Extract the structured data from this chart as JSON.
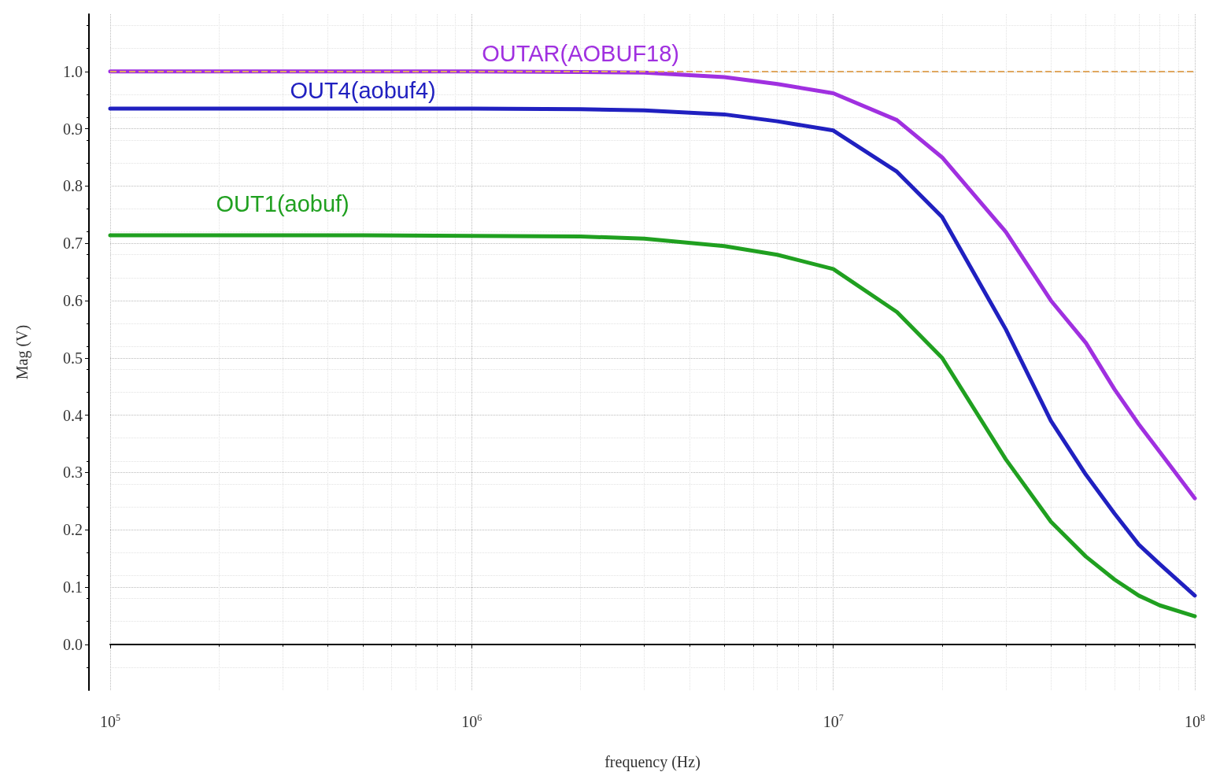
{
  "chart_data": {
    "type": "line",
    "xlabel": "frequency (Hz)",
    "ylabel": "Mag (V)",
    "log": "x",
    "x": [
      100000,
      300000,
      500000,
      1000000,
      2000000,
      3000000,
      5000000,
      7000000,
      10000000,
      15000000,
      20000000,
      30000000,
      40000000,
      50000000,
      60000000,
      70000000,
      80000000,
      100000000
    ],
    "series": [
      {
        "name": "OUTAR(AOBUF18)",
        "color": "#a030e0",
        "values": [
          1.0,
          1.0,
          1.0,
          1.0,
          0.999,
          0.998,
          0.99,
          0.978,
          0.962,
          0.915,
          0.85,
          0.72,
          0.6,
          0.526,
          0.445,
          0.384,
          0.336,
          0.255
        ]
      },
      {
        "name": "OUT4(aobuf4)",
        "color": "#2020c0",
        "values": [
          0.935,
          0.935,
          0.935,
          0.935,
          0.934,
          0.932,
          0.925,
          0.913,
          0.897,
          0.825,
          0.746,
          0.55,
          0.39,
          0.296,
          0.228,
          0.174,
          0.14,
          0.085
        ]
      },
      {
        "name": "OUT1(aobuf)",
        "color": "#20a020",
        "values": [
          0.714,
          0.714,
          0.714,
          0.713,
          0.712,
          0.708,
          0.695,
          0.68,
          0.655,
          0.58,
          0.5,
          0.323,
          0.214,
          0.153,
          0.113,
          0.085,
          0.068,
          0.049
        ]
      }
    ],
    "xlim": [
      100000,
      100000000
    ],
    "xticks": [
      {
        "value": 100000,
        "label": "10$^{5}$"
      },
      {
        "value": 1000000,
        "label": "10$^{6}$"
      },
      {
        "value": 10000000,
        "label": "10$^{7}$"
      },
      {
        "value": 100000000,
        "label": "10$^{8}$"
      }
    ],
    "ylim": [
      -0.08,
      1.1
    ],
    "yticks": [
      {
        "value": 0,
        "label": "0.0"
      },
      0.1,
      0.2,
      0.3,
      0.4,
      0.5,
      0.6,
      0.7,
      0.8,
      0.9,
      {
        "value": 1,
        "label": "1.0"
      }
    ],
    "ref_lines": [
      {
        "axis": "y",
        "value": 1.0,
        "color": "#e0a860",
        "line_style": "dashed"
      }
    ],
    "grid": true,
    "legend": false,
    "marker": "none",
    "line_style": "solid"
  }
}
